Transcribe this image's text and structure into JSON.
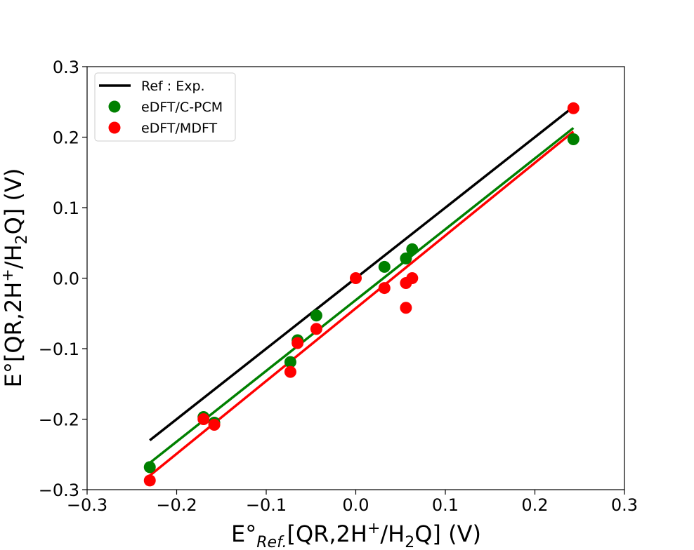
{
  "chart_data": {
    "type": "scatter",
    "xlabel": {
      "base": "E°",
      "sub": "Ref.",
      "bracket": "[QR,2H",
      "sup": "+",
      "slash": "/H",
      "sub2": "2",
      "tail": "Q] (V)"
    },
    "ylabel": {
      "base": "E°[QR,2H",
      "sup": "+",
      "slash": "/H",
      "sub2": "2",
      "tail": "Q] (V)"
    },
    "xlim": [
      -0.3,
      0.3
    ],
    "ylim": [
      -0.3,
      0.3
    ],
    "xticks": [
      -0.3,
      -0.2,
      -0.1,
      0.0,
      0.1,
      0.2,
      0.3
    ],
    "yticks": [
      -0.3,
      -0.2,
      -0.1,
      0.0,
      0.1,
      0.2,
      0.3
    ],
    "xtick_labels": [
      "−0.3",
      "−0.2",
      "−0.1",
      "0.0",
      "0.1",
      "0.2",
      "0.3"
    ],
    "ytick_labels": [
      "−0.3",
      "−0.2",
      "−0.1",
      "0.0",
      "0.1",
      "0.2",
      "0.3"
    ],
    "legend": {
      "position": "upper-left",
      "entries": [
        "Ref : Exp.",
        "eDFT/C-PCM",
        "eDFT/MDFT"
      ]
    },
    "series": [
      {
        "name": "Ref : Exp.",
        "kind": "line",
        "color": "#000000",
        "x": [
          -0.23,
          0.243
        ],
        "y": [
          -0.23,
          0.243
        ]
      },
      {
        "name": "eDFT/C-PCM",
        "kind": "scatter",
        "color": "#008000",
        "x": [
          -0.23,
          -0.17,
          -0.158,
          -0.073,
          -0.065,
          -0.044,
          0.032,
          0.056,
          0.063,
          0.243
        ],
        "y": [
          -0.268,
          -0.197,
          -0.205,
          -0.119,
          -0.088,
          -0.053,
          0.016,
          0.028,
          0.041,
          0.197
        ],
        "fit": {
          "x": [
            -0.23,
            0.243
          ],
          "y": [
            -0.262,
            0.213
          ]
        }
      },
      {
        "name": "eDFT/MDFT",
        "kind": "scatter",
        "color": "#ff0000",
        "x": [
          -0.23,
          -0.17,
          -0.158,
          -0.073,
          -0.065,
          -0.044,
          0.0,
          0.032,
          0.056,
          0.056,
          0.063,
          0.243
        ],
        "y": [
          -0.287,
          -0.2,
          -0.208,
          -0.133,
          -0.092,
          -0.072,
          0.0,
          -0.014,
          -0.007,
          -0.042,
          0.0,
          0.241
        ],
        "fit": {
          "x": [
            -0.23,
            0.243
          ],
          "y": [
            -0.28,
            0.208
          ]
        }
      }
    ]
  }
}
